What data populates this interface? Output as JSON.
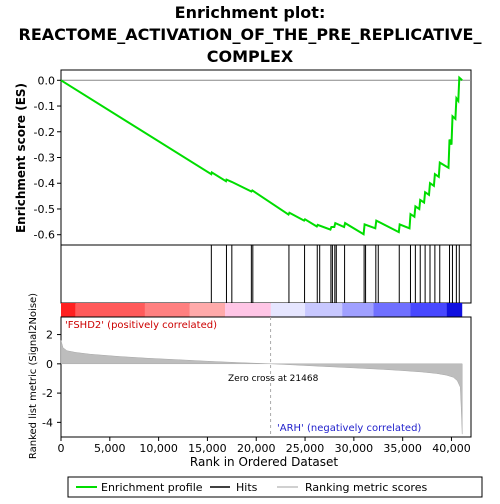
{
  "chart_data": {
    "type": "line",
    "title_line1": "Enrichment plot:",
    "title_line2": "REACTOME_ACTIVATION_OF_THE_PRE_REPLICATIVE_",
    "title_line3": "COMPLEX",
    "ylabel_top": "Enrichment score (ES)",
    "ylabel_bottom": "Ranked list metric (Signal2Noise)",
    "xlabel": "Rank in Ordered Dataset",
    "xlim": [
      0,
      42000
    ],
    "x_ticks": [
      0,
      5000,
      10000,
      15000,
      20000,
      25000,
      30000,
      35000,
      40000
    ],
    "x_tick_labels": [
      "0",
      "5,000",
      "10,000",
      "15,000",
      "20,000",
      "25,000",
      "30,000",
      "35,000",
      "40,000"
    ],
    "es_ylim": [
      -0.64,
      0.04
    ],
    "es_ticks": [
      0.0,
      -0.1,
      -0.2,
      -0.3,
      -0.4,
      -0.5,
      -0.6
    ],
    "es_tick_labels": [
      "0.0",
      "-0.1",
      "-0.2",
      "-0.3",
      "-0.4",
      "-0.5",
      "-0.6"
    ],
    "metric_ylim": [
      -5,
      3.2
    ],
    "metric_ticks": [
      2,
      0,
      -2,
      -4
    ],
    "metric_tick_labels": [
      "2",
      "0",
      "-2",
      "-4"
    ],
    "enrichment_profile": {
      "name": "Enrichment profile",
      "color": "#00dd00",
      "x": [
        0,
        15400,
        15450,
        16900,
        16950,
        17500,
        19500,
        19600,
        23300,
        23400,
        24900,
        25000,
        26200,
        26300,
        27600,
        27700,
        28000,
        28100,
        29000,
        29100,
        31000,
        31100,
        32200,
        32300,
        34600,
        34700,
        35700,
        35800,
        36200,
        36300,
        36700,
        36800,
        37200,
        37300,
        37700,
        37800,
        38200,
        38300,
        38700,
        38800,
        39700,
        39800,
        40000,
        40100,
        40400,
        40500,
        40700,
        40800,
        41100
      ],
      "y": [
        0.0,
        -0.365,
        -0.358,
        -0.392,
        -0.386,
        -0.395,
        -0.432,
        -0.428,
        -0.522,
        -0.515,
        -0.545,
        -0.54,
        -0.568,
        -0.562,
        -0.58,
        -0.57,
        -0.57,
        -0.555,
        -0.57,
        -0.555,
        -0.598,
        -0.56,
        -0.575,
        -0.545,
        -0.59,
        -0.56,
        -0.575,
        -0.52,
        -0.53,
        -0.49,
        -0.5,
        -0.465,
        -0.475,
        -0.435,
        -0.445,
        -0.4,
        -0.41,
        -0.365,
        -0.375,
        -0.32,
        -0.34,
        -0.23,
        -0.25,
        -0.14,
        -0.15,
        -0.07,
        -0.08,
        0.01,
        0.0
      ]
    },
    "hits": {
      "name": "Hits",
      "color": "#000000",
      "x": [
        15400,
        16950,
        17500,
        19500,
        19650,
        23350,
        24950,
        26250,
        26500,
        27650,
        27800,
        28050,
        28200,
        29050,
        31050,
        31200,
        32250,
        32500,
        34650,
        35800,
        36300,
        36800,
        37300,
        37800,
        38300,
        38800,
        39800,
        40100,
        40500,
        40800
      ]
    },
    "ranking_metric": {
      "name": "Ranking metric scores",
      "color": "#c0c0c0",
      "x": [
        0,
        200,
        600,
        1500,
        3000,
        6000,
        9000,
        12000,
        15000,
        18000,
        21468,
        24000,
        27000,
        30000,
        33000,
        35000,
        37000,
        38500,
        39500,
        40200,
        40600,
        40900,
        41000,
        41100
      ],
      "y": [
        1.6,
        1.1,
        0.9,
        0.78,
        0.66,
        0.5,
        0.38,
        0.28,
        0.18,
        0.09,
        0.0,
        -0.08,
        -0.18,
        -0.28,
        -0.38,
        -0.46,
        -0.56,
        -0.66,
        -0.78,
        -0.92,
        -1.15,
        -1.6,
        -3.0,
        -4.8
      ]
    },
    "zero_cross_label": "Zero cross at 21468",
    "zero_cross": 21468,
    "pos_label": "'FSHD2' (positively correlated)",
    "neg_label": "'ARH' (negatively correlated)",
    "legend": [
      "Enrichment profile",
      "Hits",
      "Ranking metric scores"
    ],
    "legend_position": "bottom"
  }
}
